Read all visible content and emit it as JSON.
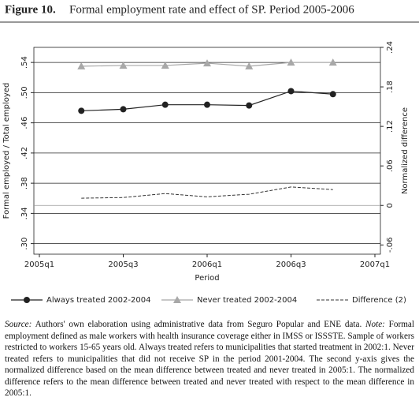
{
  "chart_data": {
    "type": "line",
    "figure_label": "Figure 10.",
    "title": "Formal employment rate and effect of SP. Period 2005-2006",
    "x_label": "Period",
    "y_label": "Formal employed / Total employed",
    "y2_label": "Normalized difference",
    "x": [
      "2005q2",
      "2005q3",
      "2005q4",
      "2006q1",
      "2006q2",
      "2006q3",
      "2006q4"
    ],
    "xlim": [
      "2005q1",
      "2007q1"
    ],
    "xticks": [
      "2005q1",
      "2005q3",
      "2006q1",
      "2006q3",
      "2007q1"
    ],
    "ylim": [
      0.286,
      0.56
    ],
    "yticks": [
      {
        "value": 0.3,
        "label": ".30"
      },
      {
        "value": 0.34,
        "label": ".34"
      },
      {
        "value": 0.38,
        "label": ".38"
      },
      {
        "value": 0.42,
        "label": ".42"
      },
      {
        "value": 0.46,
        "label": ".46"
      },
      {
        "value": 0.5,
        "label": ".50"
      },
      {
        "value": 0.54,
        "label": ".54"
      }
    ],
    "y2lim": [
      -0.074,
      0.24
    ],
    "y2ticks": [
      {
        "value": -0.06,
        "label": "-.06"
      },
      {
        "value": 0,
        "label": "0"
      },
      {
        "value": 0.06,
        "label": ".06"
      },
      {
        "value": 0.12,
        "label": ".12"
      },
      {
        "value": 0.18,
        "label": ".18"
      },
      {
        "value": 0.24,
        "label": ".24"
      }
    ],
    "grid": true,
    "y2_zero_line": true,
    "series": [
      {
        "name": "Always treated 2002-2004",
        "color": "#222222",
        "marker": "circle",
        "values": [
          0.476,
          0.478,
          0.484,
          0.484,
          0.483,
          0.502,
          0.498
        ]
      },
      {
        "name": "Never treated 2002-2004",
        "color": "#a8a8a8",
        "marker": "triangle",
        "values": [
          0.535,
          0.536,
          0.536,
          0.539,
          0.535,
          0.54,
          0.54
        ]
      },
      {
        "name": "Difference (2)",
        "color": "#333333",
        "marker": "none",
        "dashed": true,
        "axis": "y2",
        "values": [
          0.011,
          0.012,
          0.018,
          0.013,
          0.017,
          0.028,
          0.024
        ]
      }
    ],
    "source_label": "Source:",
    "source_text": "Authors' own elaboration using administrative data from Seguro Popular and ENE data.",
    "note_label": "Note:",
    "note_text": "Formal employment defined as male workers with health insurance coverage either in IMSS or ISSSTE. Sample of workers restricted to workers 15-65 years old. Always treated refers to municipalities that started treatment in 2002:1. Never treated refers to municipalities that did not receive SP in the period 2001-2004. The second y-axis gives the normalized difference based on the mean difference between treated and never treated in 2005:1. The normalized difference refers to the mean difference between treated and never treated with respect to the mean difference in 2005:1."
  }
}
